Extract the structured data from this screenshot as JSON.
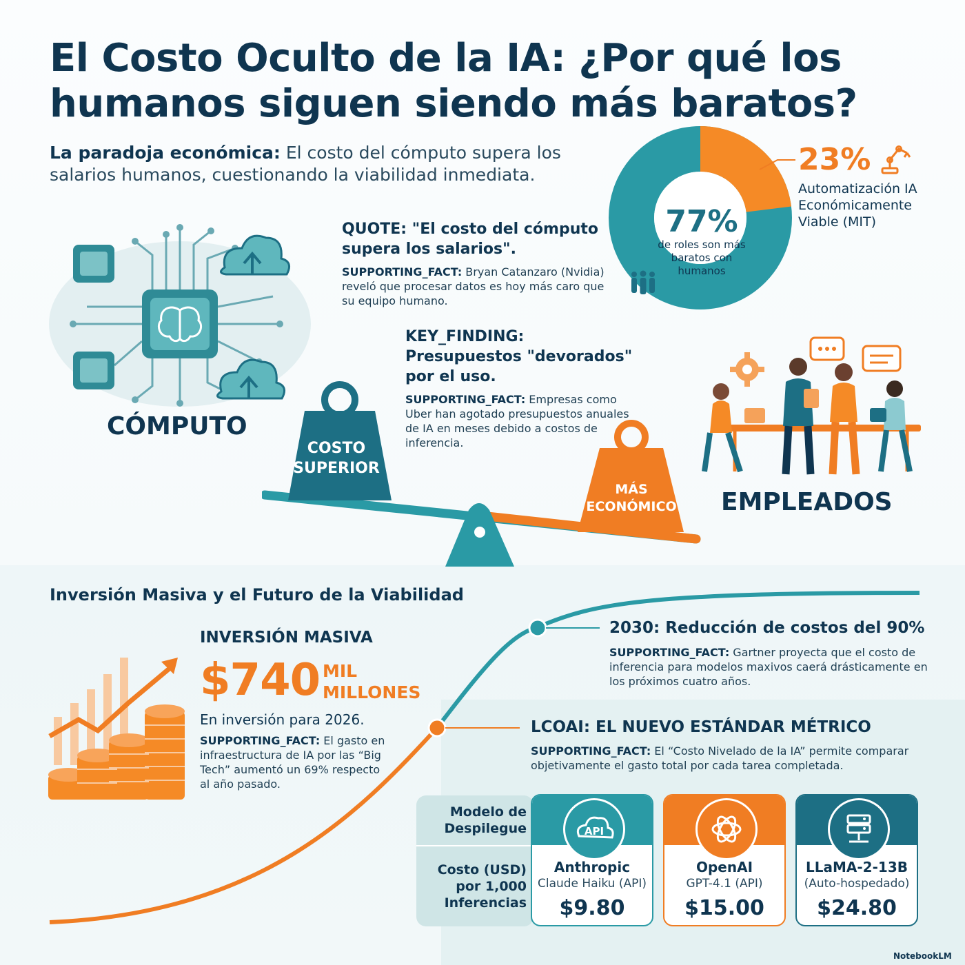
{
  "header": {
    "title": "El Costo Oculto de la IA: ¿Por qué los humanos siguen siendo más baratos?",
    "subtitle_lead": "La paradoja económica:",
    "subtitle_rest": " El costo del cómputo supera los salarios humanos, cuestionando la viabilidad inmediata."
  },
  "quote": {
    "headline": "QUOTE: \"El costo del cómputo supera los salarios\".",
    "fact_label": "SUPPORTING_FACT:",
    "fact_text": " Bryan Catanzaro (Nvidia) reveló que procesar datos es hoy más caro que su equipo humano."
  },
  "key_finding": {
    "headline": "KEY_FINDING: Presupuestos \"devorados\" por el uso.",
    "fact_label": "SUPPORTING_FACT:",
    "fact_text": " Empresas como Uber han agotado presupuestos anuales de IA en meses debido a costos de inferencia."
  },
  "donut": {
    "main_pct_label": "77%",
    "main_pct_value": 77,
    "main_caption": "de roles son más baratos con humanos",
    "minor_pct_label": "23%",
    "minor_pct_value": 23,
    "minor_caption": "Automatización IA Económicamente Viable (MIT)",
    "colors": {
      "main": "#2a9aa5",
      "minor": "#f58a26"
    }
  },
  "scale": {
    "left_label": "CÓMPUTO",
    "right_label": "EMPLEADOS",
    "left_weight": "COSTO SUPERIOR",
    "right_weight": "MÁS ECONÓMICO"
  },
  "section2": {
    "title": "Inversión Masiva y el Futuro de la Viabilidad",
    "investment": {
      "headline": "INVERSIÓN MASIVA",
      "amount": "$740",
      "unit": "MIL MILLONES",
      "sub": "En inversión para 2026.",
      "fact_label": "SUPPORTING_FACT:",
      "fact_text": " El gasto en infraestructura de IA por las “Big Tech” aumentó un 69% respecto al año pasado."
    },
    "y2030": {
      "headline": "2030: Reducción de costos del 90%",
      "fact_label": "SUPPORTING_FACT:",
      "fact_text": " Gartner proyecta que el costo de inferencia para modelos maxivos caerá drásticamente en los próximos cuatro años."
    },
    "lcoai": {
      "headline": "LCOAI: EL NUEVO ESTÁNDAR MÉTRICO",
      "fact_label": "SUPPORTING_FACT:",
      "fact_text": " El “Costo Nivelado de la IA” permite comparar objetivamente el gasto total por cada tarea completada."
    }
  },
  "cost_table": {
    "row1_label": "Modelo de Despilegue",
    "row2_label": "Costo (USD) por 1,000 Inferencias",
    "cards": [
      {
        "name": "Anthropic",
        "model": "Claude Haiku (API)",
        "price": "$9.80",
        "icon_text": "API"
      },
      {
        "name": "OpenAI",
        "model": "GPT-4.1 (API)",
        "price": "$15.00"
      },
      {
        "name": "LLaMA-2-13B",
        "model": "(Auto-hospedado)",
        "price": "$24.80"
      }
    ]
  },
  "brand": "NotebookLM"
}
